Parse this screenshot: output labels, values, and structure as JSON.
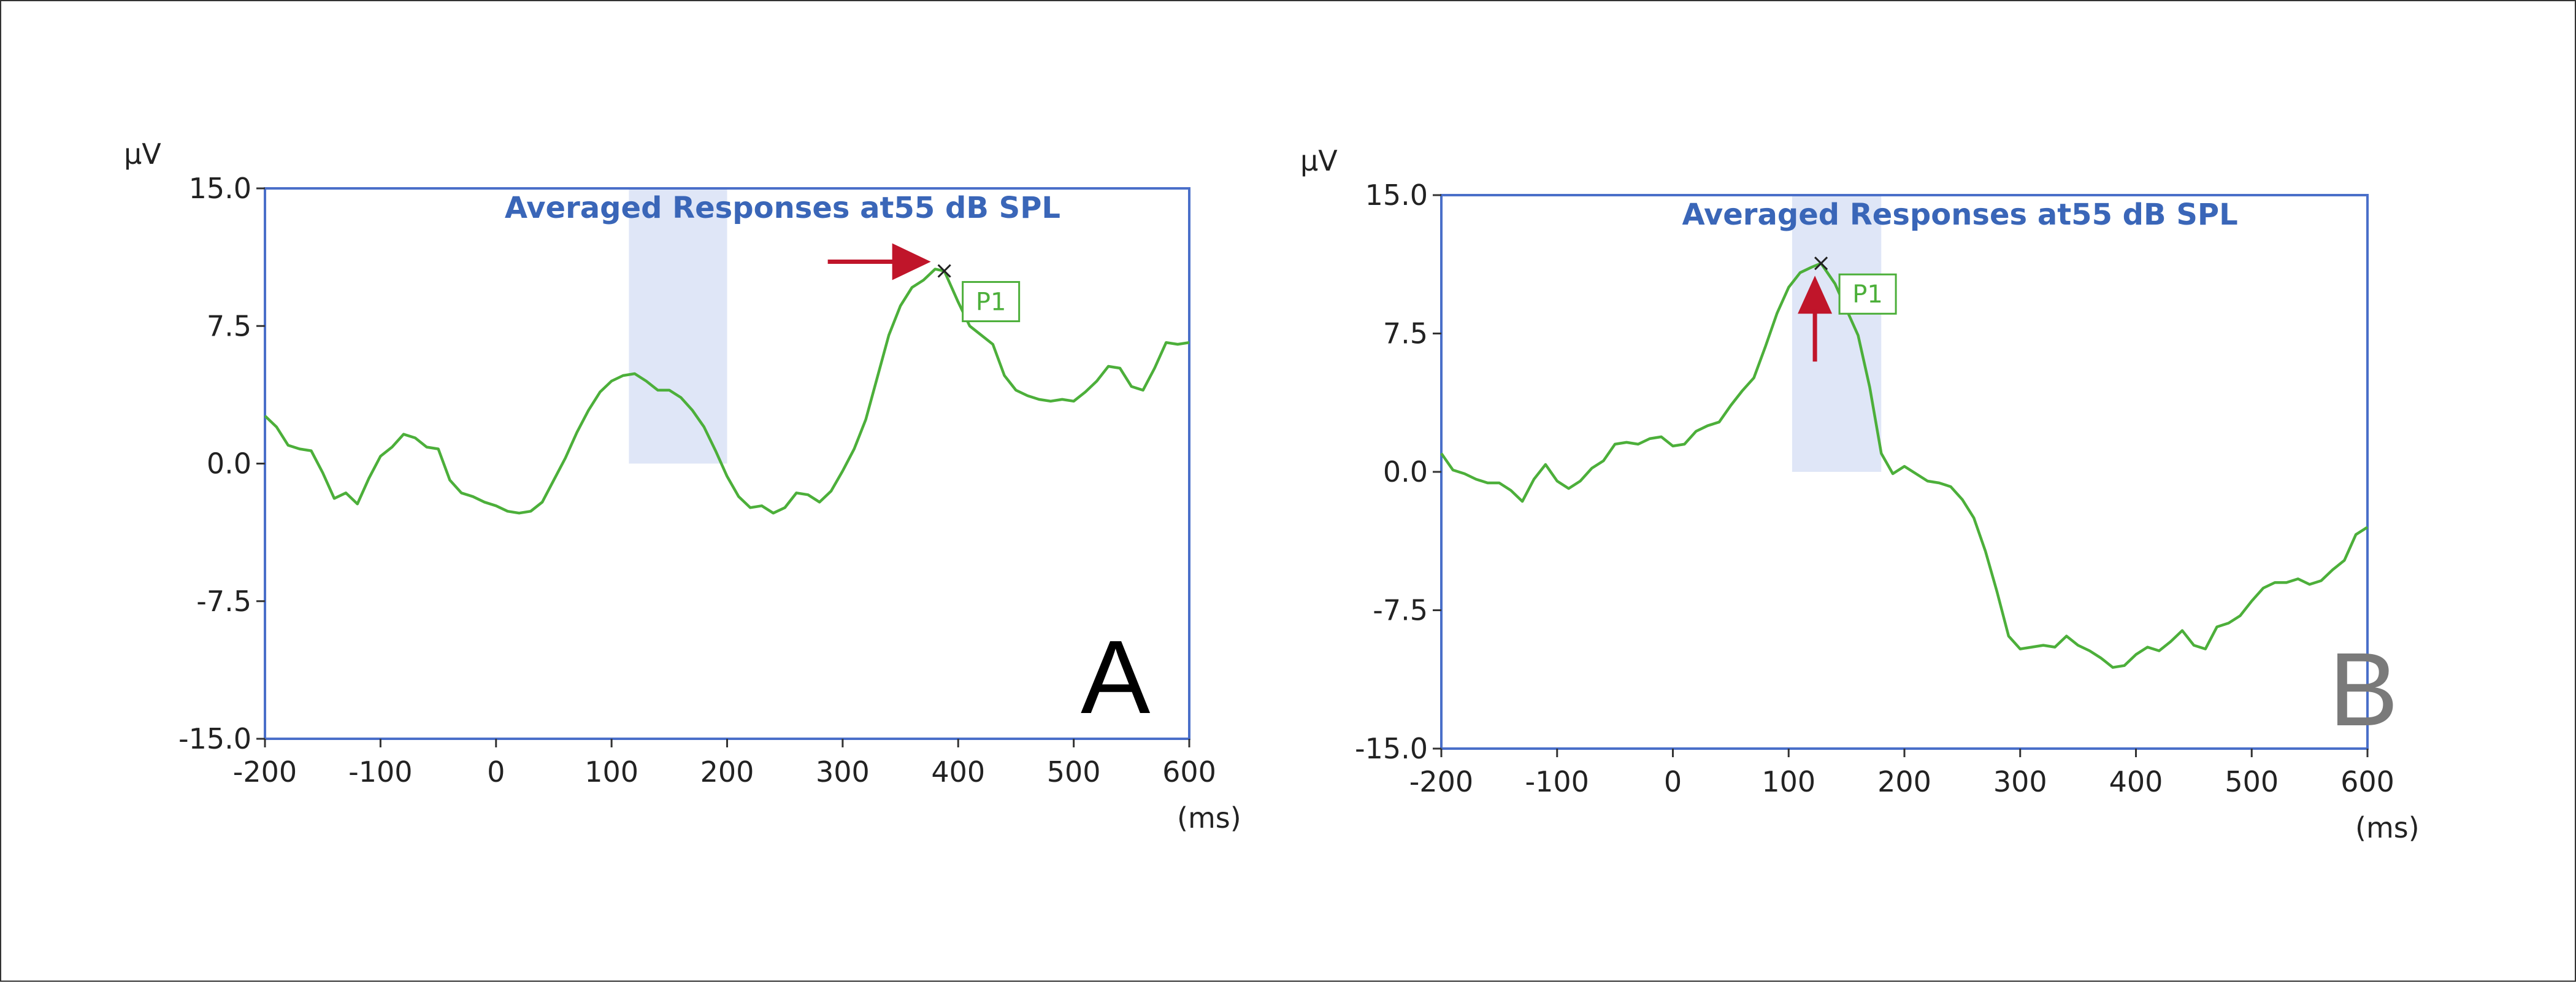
{
  "colors": {
    "frame": "#4a6fc9",
    "trace": "#4caf3a",
    "window": "#dfe6f7",
    "title": "#3a66b8",
    "arrow": "#c0152a",
    "marker": "#222222",
    "letter_a": "#000000",
    "letter_b": "#7a7a7a"
  },
  "chart_data": [
    {
      "type": "line",
      "panel_label": "A",
      "title": "Averaged Responses at55 dB SPL",
      "ylabel": "µV",
      "xlabel": "(ms)",
      "xlim": [
        -200,
        600
      ],
      "ylim": [
        -15.0,
        15.0
      ],
      "x_tick_labels": [
        "-200",
        "-100",
        "0",
        "100",
        "200",
        "300",
        "400",
        "500",
        "600"
      ],
      "y_tick_labels": [
        "15.0",
        "7.5",
        "0.0",
        "-7.5",
        "-15.0"
      ],
      "grid": false,
      "analysis_window_ms": [
        115,
        200
      ],
      "peak": {
        "label": "P1",
        "x": 388,
        "y": 10.5,
        "arrow": "from-left"
      },
      "series": [
        {
          "x": [
            -200,
            -190,
            -180,
            -170,
            -160,
            -150,
            -140,
            -130,
            -120,
            -110,
            -100,
            -90,
            -80,
            -70,
            -60,
            -50,
            -40,
            -30,
            -20,
            -10,
            0,
            10,
            20,
            30,
            40,
            50,
            60,
            70,
            80,
            90,
            100,
            110,
            120,
            130,
            140,
            150,
            160,
            170,
            180,
            190,
            200,
            210,
            220,
            230,
            240,
            250,
            260,
            270,
            280,
            290,
            300,
            310,
            320,
            330,
            340,
            350,
            360,
            370,
            380,
            388,
            400,
            410,
            420,
            430,
            440,
            450,
            460,
            470,
            480,
            490,
            500,
            510,
            520,
            530,
            540,
            550,
            560,
            570,
            580,
            590,
            600
          ],
          "y": [
            2.6,
            2.0,
            1.0,
            0.8,
            0.7,
            -0.5,
            -1.9,
            -1.6,
            -2.2,
            -0.8,
            0.4,
            0.9,
            1.6,
            1.4,
            0.9,
            0.8,
            -0.9,
            -1.6,
            -1.8,
            -2.1,
            -2.3,
            -2.6,
            -2.7,
            -2.6,
            -2.1,
            -0.9,
            0.3,
            1.7,
            2.9,
            3.9,
            4.5,
            4.8,
            4.9,
            4.5,
            4.0,
            4.0,
            3.6,
            2.9,
            2.0,
            0.7,
            -0.7,
            -1.8,
            -2.4,
            -2.3,
            -2.7,
            -2.4,
            -1.6,
            -1.7,
            -2.1,
            -1.5,
            -0.4,
            0.8,
            2.4,
            4.7,
            7.0,
            8.6,
            9.6,
            10.0,
            10.6,
            10.5,
            8.8,
            7.5,
            7.0,
            6.5,
            4.8,
            4.0,
            3.7,
            3.5,
            3.4,
            3.5,
            3.4,
            3.9,
            4.5,
            5.3,
            5.2,
            4.2,
            4.0,
            5.2,
            6.6,
            6.5,
            6.6
          ]
        }
      ]
    },
    {
      "type": "line",
      "panel_label": "B",
      "title": "Averaged Responses at55 dB SPL",
      "ylabel": "µV",
      "xlabel": "(ms)",
      "xlim": [
        -200,
        600
      ],
      "ylim": [
        -15.0,
        15.0
      ],
      "x_tick_labels": [
        "-200",
        "-100",
        "0",
        "100",
        "200",
        "300",
        "400",
        "500",
        "600"
      ],
      "y_tick_labels": [
        "15.0",
        "7.5",
        "0.0",
        "-7.5",
        "-15.0"
      ],
      "grid": false,
      "analysis_window_ms": [
        103,
        180
      ],
      "peak": {
        "label": "P1",
        "x": 128,
        "y": 11.3,
        "arrow": "from-below"
      },
      "series": [
        {
          "x": [
            -200,
            -190,
            -180,
            -170,
            -160,
            -150,
            -140,
            -130,
            -120,
            -110,
            -100,
            -90,
            -80,
            -70,
            -60,
            -50,
            -40,
            -30,
            -20,
            -10,
            0,
            10,
            20,
            30,
            40,
            50,
            60,
            70,
            80,
            90,
            100,
            110,
            120,
            128,
            140,
            150,
            160,
            170,
            180,
            190,
            200,
            210,
            220,
            230,
            240,
            250,
            260,
            270,
            280,
            290,
            300,
            310,
            320,
            330,
            340,
            350,
            360,
            370,
            380,
            390,
            400,
            410,
            420,
            430,
            440,
            450,
            460,
            470,
            480,
            490,
            500,
            510,
            520,
            530,
            540,
            550,
            560,
            570,
            580,
            590,
            600
          ],
          "y": [
            1.0,
            0.1,
            -0.1,
            -0.4,
            -0.6,
            -0.6,
            -1.0,
            -1.6,
            -0.4,
            0.4,
            -0.5,
            -0.9,
            -0.5,
            0.2,
            0.6,
            1.5,
            1.6,
            1.5,
            1.8,
            1.9,
            1.4,
            1.5,
            2.2,
            2.5,
            2.7,
            3.6,
            4.4,
            5.1,
            6.8,
            8.6,
            10.0,
            10.8,
            11.1,
            11.3,
            10.2,
            8.8,
            7.4,
            4.6,
            1.0,
            -0.1,
            0.3,
            -0.1,
            -0.5,
            -0.6,
            -0.8,
            -1.5,
            -2.5,
            -4.3,
            -6.5,
            -8.9,
            -9.6,
            -9.5,
            -9.4,
            -9.5,
            -8.9,
            -9.4,
            -9.7,
            -10.1,
            -10.6,
            -10.5,
            -9.9,
            -9.5,
            -9.7,
            -9.2,
            -8.6,
            -9.4,
            -9.6,
            -8.4,
            -8.2,
            -7.8,
            -7.0,
            -6.3,
            -6.0,
            -6.0,
            -5.8,
            -6.1,
            -5.9,
            -5.3,
            -4.8,
            -3.4,
            -3.0
          ]
        }
      ]
    }
  ]
}
